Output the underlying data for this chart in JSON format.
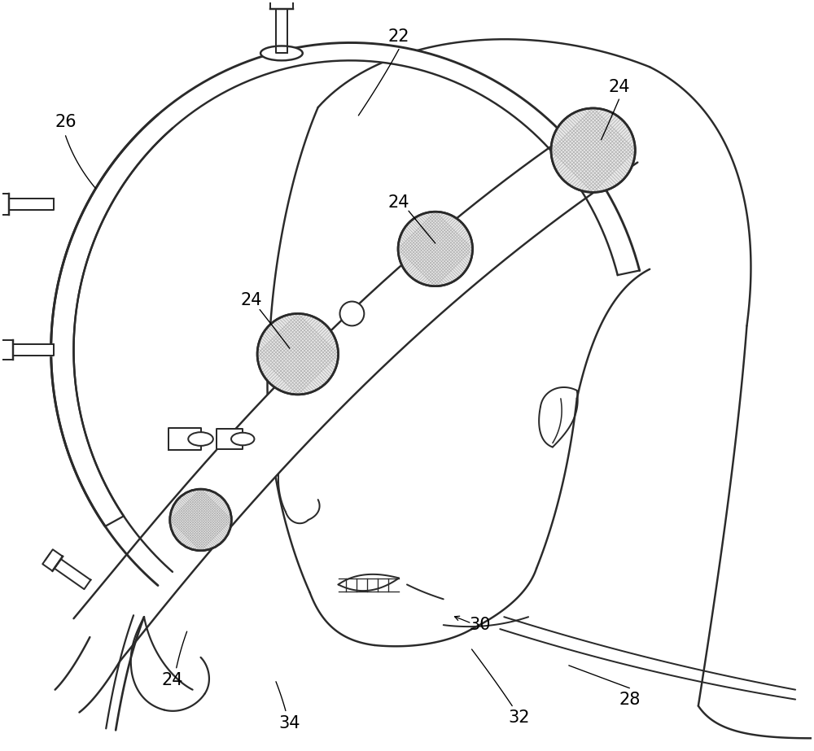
{
  "bg_color": "#ffffff",
  "line_color": "#2a2a2a",
  "lw_main": 1.6,
  "fig_width": 10.0,
  "fig_height": 9.23,
  "label_fontsize": 15,
  "hatch_color": "#aaaaaa"
}
